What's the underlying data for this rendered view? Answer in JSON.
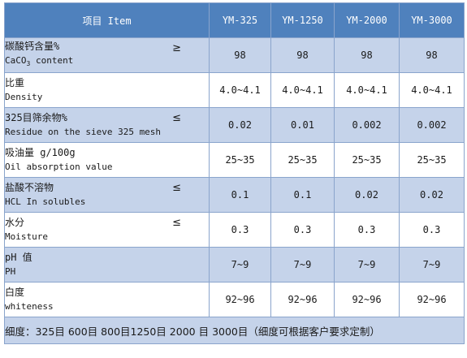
{
  "header": {
    "item": "项目 Item",
    "models": [
      "YM-325",
      "YM-1250",
      "YM-2000",
      "YM-3000"
    ]
  },
  "rows": [
    {
      "zh": "碳酸钙含量%",
      "en_pre": "CaCO",
      "en_sub": "3",
      "en_post": " content",
      "op": "≥",
      "values": [
        "98",
        "98",
        "98",
        "98"
      ]
    },
    {
      "zh": "比重",
      "en": "Density",
      "op": "",
      "values": [
        "4.0~4.1",
        "4.0~4.1",
        "4.0~4.1",
        "4.0~4.1"
      ]
    },
    {
      "zh": "325目筛余物%",
      "en": "Residue on the sieve 325 mesh",
      "op": "≤",
      "values": [
        "0.02",
        "0.01",
        "0.002",
        "0.002"
      ]
    },
    {
      "zh": "吸油量 g/100g",
      "en": "Oil absorption value",
      "op": "",
      "values": [
        "25~35",
        "25~35",
        "25~35",
        "25~35"
      ]
    },
    {
      "zh": "盐酸不溶物",
      "en": "HCL In solubles",
      "op": "≤",
      "values": [
        "0.1",
        "0.1",
        "0.02",
        "0.02"
      ]
    },
    {
      "zh": "水分",
      "en": "Moisture",
      "op": "≤",
      "values": [
        "0.3",
        "0.3",
        "0.3",
        "0.3"
      ]
    },
    {
      "zh": "pH 值",
      "en": "PH",
      "op": "",
      "values": [
        "7~9",
        "7~9",
        "7~9",
        "7~9"
      ]
    },
    {
      "zh": "白度",
      "en": "whiteness",
      "op": "",
      "values": [
        "92~96",
        "92~96",
        "92~96",
        "92~96"
      ]
    }
  ],
  "footer": "细度：325目   600目 800目1250目 2000 目 3000目（细度可根据客户要求定制）"
}
